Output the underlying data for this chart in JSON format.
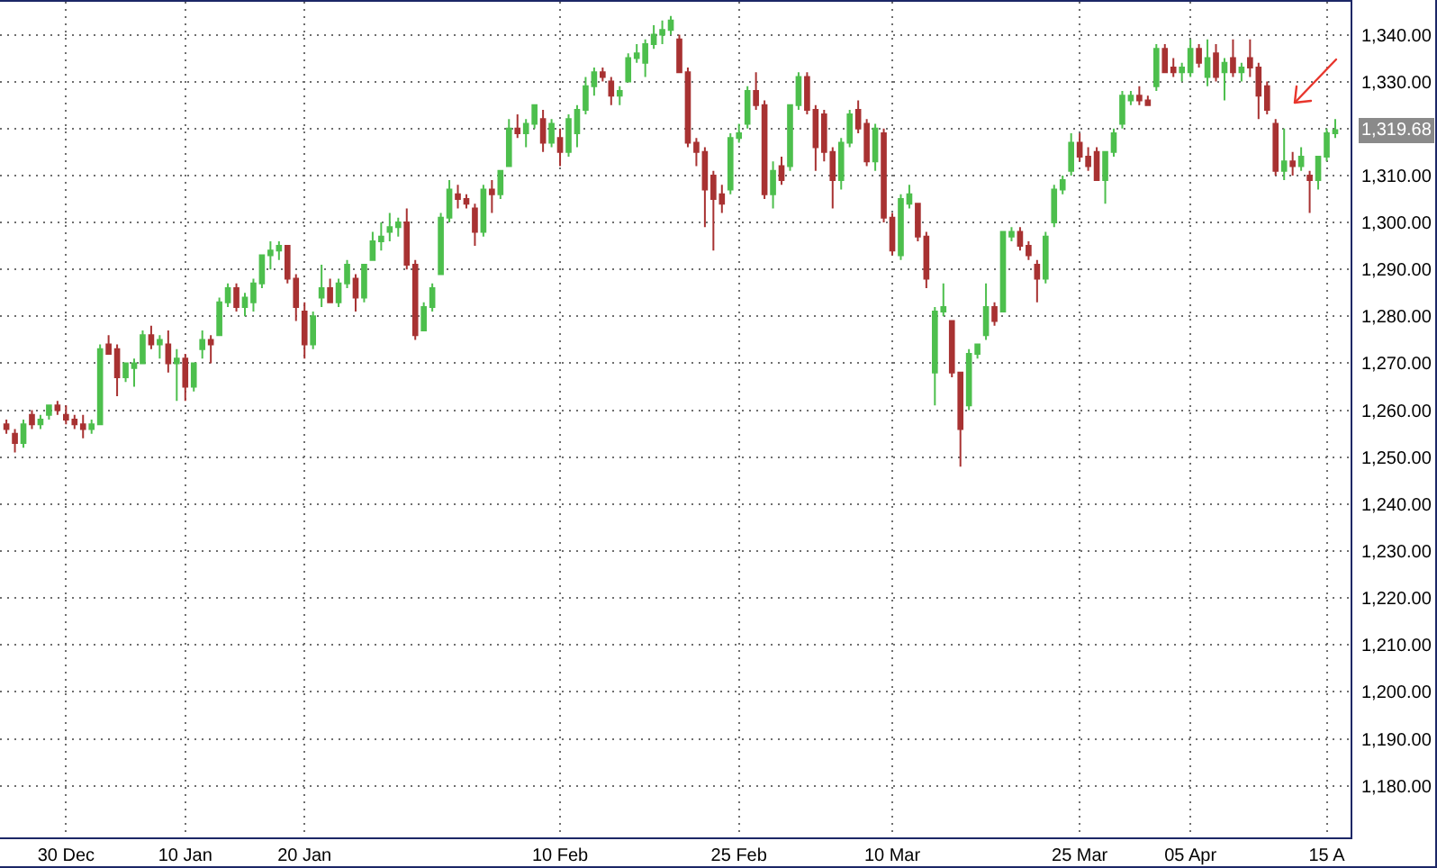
{
  "chart_data": {
    "type": "candlestick",
    "categories": [
      null,
      null,
      null,
      null,
      null,
      null,
      null,
      "30 Dec",
      null,
      null,
      null,
      null,
      null,
      null,
      null,
      null,
      null,
      null,
      null,
      null,
      null,
      "10 Jan",
      null,
      null,
      null,
      null,
      null,
      null,
      null,
      null,
      null,
      null,
      null,
      null,
      null,
      "20 Jan",
      null,
      null,
      null,
      null,
      null,
      null,
      null,
      null,
      null,
      null,
      null,
      null,
      null,
      null,
      null,
      null,
      null,
      null,
      null,
      null,
      null,
      null,
      null,
      null,
      null,
      null,
      null,
      null,
      null,
      "10 Feb",
      null,
      null,
      null,
      null,
      null,
      null,
      null,
      null,
      null,
      null,
      null,
      null,
      null,
      null,
      null,
      null,
      null,
      null,
      null,
      null,
      "25 Feb",
      null,
      null,
      null,
      null,
      null,
      null,
      null,
      null,
      null,
      null,
      null,
      null,
      null,
      null,
      null,
      null,
      null,
      "10 Mar",
      null,
      null,
      null,
      null,
      null,
      null,
      null,
      null,
      null,
      null,
      null,
      null,
      null,
      null,
      null,
      null,
      null,
      null,
      null,
      null,
      null,
      "25 Mar",
      null,
      null,
      null,
      null,
      null,
      null,
      null,
      null,
      null,
      null,
      null,
      null,
      "05 Apr",
      null,
      null,
      null,
      null,
      null,
      null,
      null,
      null,
      null,
      null,
      null,
      null,
      null,
      null,
      null,
      "15 A",
      null
    ],
    "ohlc": [
      [
        1257,
        1258,
        1255,
        1256
      ],
      [
        1255,
        1256,
        1251,
        1253
      ],
      [
        1253,
        1258,
        1252,
        1257
      ],
      [
        1259,
        1260,
        1256,
        1257
      ],
      [
        1257,
        1259,
        1256,
        1258
      ],
      [
        1259,
        1261,
        1258,
        1261
      ],
      [
        1261,
        1262,
        1259,
        1260
      ],
      [
        1259,
        1261,
        1257,
        1258
      ],
      [
        1258,
        1259,
        1256,
        1257
      ],
      [
        1257,
        1259,
        1254,
        1256
      ],
      [
        1256,
        1258,
        1255,
        1257
      ],
      [
        1257,
        1274,
        1257,
        1273
      ],
      [
        1274,
        1276,
        1272,
        1272
      ],
      [
        1273,
        1274,
        1263,
        1267
      ],
      [
        1267,
        1270,
        1266,
        1270
      ],
      [
        1269,
        1271,
        1265,
        1270
      ],
      [
        1270,
        1277,
        1270,
        1276
      ],
      [
        1276,
        1278,
        1273,
        1274
      ],
      [
        1274,
        1276,
        1271,
        1275
      ],
      [
        1274,
        1277,
        1268,
        1270
      ],
      [
        1270,
        1273,
        1262,
        1271
      ],
      [
        1271,
        1272,
        1262,
        1265
      ],
      [
        1265,
        1270,
        1264,
        1270
      ],
      [
        1273,
        1277,
        1271,
        1275
      ],
      [
        1275,
        1276,
        1270,
        1274
      ],
      [
        1276,
        1284,
        1276,
        1283
      ],
      [
        1283,
        1287,
        1282,
        1286
      ],
      [
        1286,
        1287,
        1281,
        1282
      ],
      [
        1282,
        1285,
        1280,
        1284
      ],
      [
        1283,
        1288,
        1281,
        1287
      ],
      [
        1287,
        1293,
        1286,
        1293
      ],
      [
        1293,
        1296,
        1290,
        1294
      ],
      [
        1294,
        1296,
        1292,
        1295
      ],
      [
        1295,
        1295,
        1287,
        1288
      ],
      [
        1288,
        1289,
        1279,
        1282
      ],
      [
        1281,
        1283,
        1271,
        1274
      ],
      [
        1274,
        1281,
        1273,
        1280
      ],
      [
        1284,
        1291,
        1282,
        1286
      ],
      [
        1286,
        1288,
        1283,
        1283
      ],
      [
        1283,
        1288,
        1282,
        1287
      ],
      [
        1287,
        1292,
        1286,
        1291
      ],
      [
        1288,
        1289,
        1281,
        1284
      ],
      [
        1284,
        1291,
        1283,
        1291
      ],
      [
        1292,
        1298,
        1292,
        1296
      ],
      [
        1296,
        1300,
        1294,
        1297
      ],
      [
        1298,
        1302,
        1296,
        1299
      ],
      [
        1299,
        1301,
        1297,
        1300
      ],
      [
        1300,
        1303,
        1290,
        1291
      ],
      [
        1291,
        1292,
        1275,
        1276
      ],
      [
        1277,
        1283,
        1277,
        1282
      ],
      [
        1282,
        1287,
        1281,
        1286
      ],
      [
        1289,
        1302,
        1289,
        1301
      ],
      [
        1301,
        1309,
        1300,
        1307
      ],
      [
        1306,
        1308,
        1303,
        1305
      ],
      [
        1305,
        1306,
        1303,
        1304
      ],
      [
        1303,
        1304,
        1295,
        1298
      ],
      [
        1298,
        1308,
        1297,
        1307
      ],
      [
        1307,
        1309,
        1302,
        1306
      ],
      [
        1306,
        1311,
        1305,
        1311
      ],
      [
        1312,
        1322,
        1312,
        1320
      ],
      [
        1320,
        1323,
        1318,
        1319
      ],
      [
        1319,
        1322,
        1316,
        1321
      ],
      [
        1321,
        1325,
        1320,
        1325
      ],
      [
        1322,
        1324,
        1315,
        1317
      ],
      [
        1317,
        1322,
        1316,
        1321
      ],
      [
        1318,
        1320,
        1312,
        1315
      ],
      [
        1315,
        1323,
        1314,
        1322
      ],
      [
        1319,
        1325,
        1316,
        1324
      ],
      [
        1324,
        1331,
        1323,
        1329
      ],
      [
        1329,
        1333,
        1327,
        1332
      ],
      [
        1332,
        1333,
        1330,
        1331
      ],
      [
        1330,
        1331,
        1325,
        1327
      ],
      [
        1327,
        1329,
        1325,
        1328
      ],
      [
        1330,
        1336,
        1330,
        1335
      ],
      [
        1335,
        1338,
        1334,
        1336
      ],
      [
        1334,
        1339,
        1331,
        1338
      ],
      [
        1338,
        1342,
        1337,
        1340
      ],
      [
        1340,
        1343,
        1338,
        1341
      ],
      [
        1341,
        1344,
        1340,
        1343
      ],
      [
        1339,
        1340,
        1332,
        1332
      ],
      [
        1332,
        1333,
        1316,
        1317
      ],
      [
        1317,
        1318,
        1312,
        1315
      ],
      [
        1315,
        1316,
        1299,
        1307
      ],
      [
        1310,
        1311,
        1294,
        1305
      ],
      [
        1306,
        1308,
        1302,
        1304
      ],
      [
        1307,
        1319,
        1306,
        1318
      ],
      [
        1318,
        1321,
        1317,
        1319
      ],
      [
        1321,
        1329,
        1320,
        1328
      ],
      [
        1328,
        1332,
        1324,
        1325
      ],
      [
        1325,
        1326,
        1305,
        1306
      ],
      [
        1306,
        1313,
        1303,
        1311
      ],
      [
        1312,
        1314,
        1308,
        1309
      ],
      [
        1312,
        1325,
        1311,
        1325
      ],
      [
        1325,
        1332,
        1324,
        1331
      ],
      [
        1331,
        1332,
        1323,
        1324
      ],
      [
        1324,
        1325,
        1311,
        1316
      ],
      [
        1323,
        1324,
        1313,
        1315
      ],
      [
        1315,
        1316,
        1303,
        1309
      ],
      [
        1309,
        1318,
        1307,
        1317
      ],
      [
        1317,
        1324,
        1316,
        1323
      ],
      [
        1324,
        1326,
        1319,
        1320
      ],
      [
        1321,
        1322,
        1312,
        1313
      ],
      [
        1313,
        1321,
        1311,
        1320
      ],
      [
        1319,
        1320,
        1300,
        1301
      ],
      [
        1301,
        1302,
        1293,
        1294
      ],
      [
        1293,
        1306,
        1292,
        1305
      ],
      [
        1304,
        1308,
        1303,
        1306
      ],
      [
        1304,
        1304,
        1296,
        1297
      ],
      [
        1297,
        1298,
        1286,
        1288
      ],
      [
        1268,
        1282,
        1261,
        1281
      ],
      [
        1281,
        1287,
        1280,
        1282
      ],
      [
        1279,
        1279,
        1267,
        1268
      ],
      [
        1268,
        1268,
        1248,
        1256
      ],
      [
        1261,
        1273,
        1260,
        1272
      ],
      [
        1272,
        1274,
        1271,
        1274
      ],
      [
        1276,
        1287,
        1275,
        1282
      ],
      [
        1282,
        1283,
        1278,
        1279
      ],
      [
        1281,
        1298,
        1281,
        1298
      ],
      [
        1297,
        1299,
        1296,
        1298
      ],
      [
        1298,
        1299,
        1294,
        1295
      ],
      [
        1295,
        1296,
        1292,
        1293
      ],
      [
        1291,
        1292,
        1283,
        1288
      ],
      [
        1288,
        1298,
        1287,
        1297
      ],
      [
        1300,
        1308,
        1299,
        1307
      ],
      [
        1307,
        1310,
        1306,
        1309
      ],
      [
        1311,
        1319,
        1310,
        1317
      ],
      [
        1317,
        1319,
        1313,
        1314
      ],
      [
        1314,
        1316,
        1311,
        1312
      ],
      [
        1315,
        1316,
        1309,
        1309
      ],
      [
        1309,
        1315,
        1304,
        1315
      ],
      [
        1315,
        1320,
        1314,
        1319
      ],
      [
        1321,
        1328,
        1320,
        1327
      ],
      [
        1326,
        1328,
        1325,
        1327
      ],
      [
        1327,
        1329,
        1325,
        1326
      ],
      [
        1326,
        1327,
        1325,
        1325
      ],
      [
        1329,
        1338,
        1328,
        1337
      ],
      [
        1337,
        1338,
        1332,
        1332
      ],
      [
        1333,
        1335,
        1331,
        1332
      ],
      [
        1332,
        1334,
        1330,
        1333
      ],
      [
        1332,
        1339,
        1331,
        1337
      ],
      [
        1337,
        1338,
        1333,
        1334
      ],
      [
        1331,
        1339,
        1329,
        1335
      ],
      [
        1336,
        1338,
        1330,
        1331
      ],
      [
        1332,
        1335,
        1326,
        1334
      ],
      [
        1335,
        1339,
        1331,
        1332
      ],
      [
        1332,
        1334,
        1330,
        1333
      ],
      [
        1335,
        1339,
        1331,
        1333
      ],
      [
        1333,
        1334,
        1322,
        1327
      ],
      [
        1329,
        1330,
        1323,
        1324
      ],
      [
        1321,
        1322,
        1310,
        1311
      ],
      [
        1311,
        1320,
        1309,
        1313
      ],
      [
        1313,
        1315,
        1310,
        1312
      ],
      [
        1312,
        1316,
        1311,
        1314
      ],
      [
        1310,
        1311,
        1302,
        1309
      ],
      [
        1309,
        1314,
        1307,
        1314
      ],
      [
        1314,
        1320,
        1313,
        1319
      ],
      [
        1319,
        1322,
        1318,
        1319.68
      ]
    ],
    "colors": [
      "#a83232",
      "#a83232",
      "#4dbf4d",
      "#a83232",
      "#4dbf4d",
      "#4dbf4d",
      "#a83232",
      "#a83232",
      "#a83232",
      "#a83232",
      "#4dbf4d",
      "#4dbf4d",
      "#a83232",
      "#a83232",
      "#4dbf4d",
      "#4dbf4d",
      "#4dbf4d",
      "#a83232",
      "#4dbf4d",
      "#a83232",
      "#4dbf4d",
      "#a83232",
      "#4dbf4d",
      "#4dbf4d",
      "#a83232",
      "#4dbf4d",
      "#4dbf4d",
      "#a83232",
      "#4dbf4d",
      "#4dbf4d",
      "#4dbf4d",
      "#4dbf4d",
      "#4dbf4d",
      "#a83232",
      "#a83232",
      "#a83232",
      "#4dbf4d",
      "#4dbf4d",
      "#a83232",
      "#4dbf4d",
      "#4dbf4d",
      "#a83232",
      "#4dbf4d",
      "#4dbf4d",
      "#4dbf4d",
      "#4dbf4d",
      "#4dbf4d",
      "#a83232",
      "#a83232",
      "#4dbf4d",
      "#4dbf4d",
      "#4dbf4d",
      "#4dbf4d",
      "#a83232",
      "#a83232",
      "#a83232",
      "#4dbf4d",
      "#a83232",
      "#4dbf4d",
      "#4dbf4d",
      "#a83232",
      "#4dbf4d",
      "#4dbf4d",
      "#a83232",
      "#4dbf4d",
      "#a83232",
      "#4dbf4d",
      "#4dbf4d",
      "#4dbf4d",
      "#4dbf4d",
      "#a83232",
      "#a83232",
      "#4dbf4d",
      "#4dbf4d",
      "#4dbf4d",
      "#4dbf4d",
      "#4dbf4d",
      "#4dbf4d",
      "#4dbf4d",
      "#a83232",
      "#a83232",
      "#a83232",
      "#a83232",
      "#a83232",
      "#a83232",
      "#4dbf4d",
      "#4dbf4d",
      "#4dbf4d",
      "#a83232",
      "#a83232",
      "#4dbf4d",
      "#a83232",
      "#4dbf4d",
      "#4dbf4d",
      "#a83232",
      "#a83232",
      "#a83232",
      "#a83232",
      "#4dbf4d",
      "#4dbf4d",
      "#a83232",
      "#a83232",
      "#4dbf4d",
      "#a83232",
      "#a83232",
      "#4dbf4d",
      "#4dbf4d",
      "#a83232",
      "#a83232",
      "#4dbf4d",
      "#4dbf4d",
      "#a83232",
      "#a83232",
      "#4dbf4d",
      "#4dbf4d",
      "#4dbf4d",
      "#a83232",
      "#4dbf4d",
      "#4dbf4d",
      "#a83232",
      "#a83232",
      "#a83232",
      "#4dbf4d",
      "#4dbf4d",
      "#4dbf4d",
      "#4dbf4d",
      "#a83232",
      "#a83232",
      "#a83232",
      "#4dbf4d",
      "#4dbf4d",
      "#4dbf4d",
      "#4dbf4d",
      "#a83232",
      "#a83232",
      "#4dbf4d",
      "#a83232",
      "#a83232",
      "#4dbf4d",
      "#4dbf4d",
      "#a83232",
      "#4dbf4d",
      "#a83232",
      "#4dbf4d",
      "#a83232",
      "#4dbf4d",
      "#a83232",
      "#a83232",
      "#a83232",
      "#a83232",
      "#4dbf4d",
      "#a83232",
      "#4dbf4d",
      "#a83232",
      "#4dbf4d",
      "#4dbf4d",
      "#4dbf4d"
    ],
    "ylim": [
      1169,
      1347
    ],
    "yticks": [
      {
        "value": 1340,
        "label": "1,340.00"
      },
      {
        "value": 1330,
        "label": "1,330.00"
      },
      {
        "value": 1320,
        "label": null
      },
      {
        "value": 1310,
        "label": "1,310.00"
      },
      {
        "value": 1300,
        "label": "1,300.00"
      },
      {
        "value": 1290,
        "label": "1,290.00"
      },
      {
        "value": 1280,
        "label": "1,280.00"
      },
      {
        "value": 1270,
        "label": "1,270.00"
      },
      {
        "value": 1260,
        "label": "1,260.00"
      },
      {
        "value": 1250,
        "label": "1,250.00"
      },
      {
        "value": 1240,
        "label": "1,240.00"
      },
      {
        "value": 1230,
        "label": "1,230.00"
      },
      {
        "value": 1220,
        "label": "1,220.00"
      },
      {
        "value": 1210,
        "label": "1,210.00"
      },
      {
        "value": 1200,
        "label": "1,200.00"
      },
      {
        "value": 1190,
        "label": "1,190.00"
      },
      {
        "value": 1180,
        "label": "1,180.00"
      }
    ],
    "grid": true,
    "annotations": [
      "1,319.68"
    ]
  }
}
